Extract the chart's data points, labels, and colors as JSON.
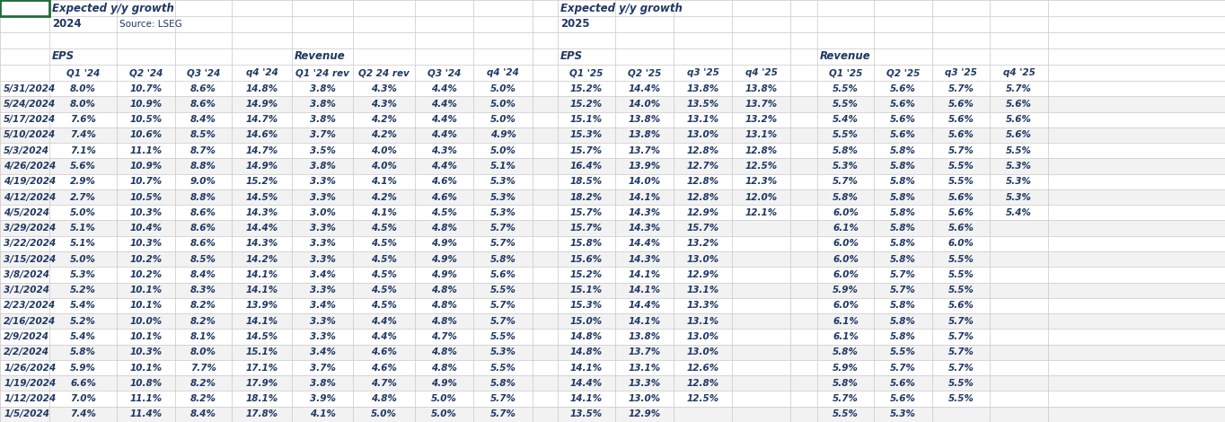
{
  "rows": [
    [
      "5/31/2024",
      "8.0%",
      "10.7%",
      "8.6%",
      "14.8%",
      "3.8%",
      "4.3%",
      "4.4%",
      "5.0%",
      "15.2%",
      "14.4%",
      "13.8%",
      "13.8%",
      "5.5%",
      "5.6%",
      "5.7%",
      "5.7%"
    ],
    [
      "5/24/2024",
      "8.0%",
      "10.9%",
      "8.6%",
      "14.9%",
      "3.8%",
      "4.3%",
      "4.4%",
      "5.0%",
      "15.2%",
      "14.0%",
      "13.5%",
      "13.7%",
      "5.5%",
      "5.6%",
      "5.6%",
      "5.6%"
    ],
    [
      "5/17/2024",
      "7.6%",
      "10.5%",
      "8.4%",
      "14.7%",
      "3.8%",
      "4.2%",
      "4.4%",
      "5.0%",
      "15.1%",
      "13.8%",
      "13.1%",
      "13.2%",
      "5.4%",
      "5.6%",
      "5.6%",
      "5.6%"
    ],
    [
      "5/10/2024",
      "7.4%",
      "10.6%",
      "8.5%",
      "14.6%",
      "3.7%",
      "4.2%",
      "4.4%",
      "4.9%",
      "15.3%",
      "13.8%",
      "13.0%",
      "13.1%",
      "5.5%",
      "5.6%",
      "5.6%",
      "5.6%"
    ],
    [
      "5/3/2024",
      "7.1%",
      "11.1%",
      "8.7%",
      "14.7%",
      "3.5%",
      "4.0%",
      "4.3%",
      "5.0%",
      "15.7%",
      "13.7%",
      "12.8%",
      "12.8%",
      "5.8%",
      "5.8%",
      "5.7%",
      "5.5%"
    ],
    [
      "4/26/2024",
      "5.6%",
      "10.9%",
      "8.8%",
      "14.9%",
      "3.8%",
      "4.0%",
      "4.4%",
      "5.1%",
      "16.4%",
      "13.9%",
      "12.7%",
      "12.5%",
      "5.3%",
      "5.8%",
      "5.5%",
      "5.3%"
    ],
    [
      "4/19/2024",
      "2.9%",
      "10.7%",
      "9.0%",
      "15.2%",
      "3.3%",
      "4.1%",
      "4.6%",
      "5.3%",
      "18.5%",
      "14.0%",
      "12.8%",
      "12.3%",
      "5.7%",
      "5.8%",
      "5.5%",
      "5.3%"
    ],
    [
      "4/12/2024",
      "2.7%",
      "10.5%",
      "8.8%",
      "14.5%",
      "3.3%",
      "4.2%",
      "4.6%",
      "5.3%",
      "18.2%",
      "14.1%",
      "12.8%",
      "12.0%",
      "5.8%",
      "5.8%",
      "5.6%",
      "5.3%"
    ],
    [
      "4/5/2024",
      "5.0%",
      "10.3%",
      "8.6%",
      "14.3%",
      "3.0%",
      "4.1%",
      "4.5%",
      "5.3%",
      "15.7%",
      "14.3%",
      "12.9%",
      "12.1%",
      "6.0%",
      "5.8%",
      "5.6%",
      "5.4%"
    ],
    [
      "3/29/2024",
      "5.1%",
      "10.4%",
      "8.6%",
      "14.4%",
      "3.3%",
      "4.5%",
      "4.8%",
      "5.7%",
      "15.7%",
      "14.3%",
      "15.7%",
      "",
      "6.1%",
      "5.8%",
      "5.6%",
      ""
    ],
    [
      "3/22/2024",
      "5.1%",
      "10.3%",
      "8.6%",
      "14.3%",
      "3.3%",
      "4.5%",
      "4.9%",
      "5.7%",
      "15.8%",
      "14.4%",
      "13.2%",
      "",
      "6.0%",
      "5.8%",
      "6.0%",
      ""
    ],
    [
      "3/15/2024",
      "5.0%",
      "10.2%",
      "8.5%",
      "14.2%",
      "3.3%",
      "4.5%",
      "4.9%",
      "5.8%",
      "15.6%",
      "14.3%",
      "13.0%",
      "",
      "6.0%",
      "5.8%",
      "5.5%",
      ""
    ],
    [
      "3/8/2024",
      "5.3%",
      "10.2%",
      "8.4%",
      "14.1%",
      "3.4%",
      "4.5%",
      "4.9%",
      "5.6%",
      "15.2%",
      "14.1%",
      "12.9%",
      "",
      "6.0%",
      "5.7%",
      "5.5%",
      ""
    ],
    [
      "3/1/2024",
      "5.2%",
      "10.1%",
      "8.3%",
      "14.1%",
      "3.3%",
      "4.5%",
      "4.8%",
      "5.5%",
      "15.1%",
      "14.1%",
      "13.1%",
      "",
      "5.9%",
      "5.7%",
      "5.5%",
      ""
    ],
    [
      "2/23/2024",
      "5.4%",
      "10.1%",
      "8.2%",
      "13.9%",
      "3.4%",
      "4.5%",
      "4.8%",
      "5.7%",
      "15.3%",
      "14.4%",
      "13.3%",
      "",
      "6.0%",
      "5.8%",
      "5.6%",
      ""
    ],
    [
      "2/16/2024",
      "5.2%",
      "10.0%",
      "8.2%",
      "14.1%",
      "3.3%",
      "4.4%",
      "4.8%",
      "5.7%",
      "15.0%",
      "14.1%",
      "13.1%",
      "",
      "6.1%",
      "5.8%",
      "5.7%",
      ""
    ],
    [
      "2/9/2024",
      "5.4%",
      "10.1%",
      "8.1%",
      "14.5%",
      "3.3%",
      "4.4%",
      "4.7%",
      "5.5%",
      "14.8%",
      "13.8%",
      "13.0%",
      "",
      "6.1%",
      "5.8%",
      "5.7%",
      ""
    ],
    [
      "2/2/2024",
      "5.8%",
      "10.3%",
      "8.0%",
      "15.1%",
      "3.4%",
      "4.6%",
      "4.8%",
      "5.3%",
      "14.8%",
      "13.7%",
      "13.0%",
      "",
      "5.8%",
      "5.5%",
      "5.7%",
      ""
    ],
    [
      "1/26/2024",
      "5.9%",
      "10.1%",
      "7.7%",
      "17.1%",
      "3.7%",
      "4.6%",
      "4.8%",
      "5.5%",
      "14.1%",
      "13.1%",
      "12.6%",
      "",
      "5.9%",
      "5.7%",
      "5.7%",
      ""
    ],
    [
      "1/19/2024",
      "6.6%",
      "10.8%",
      "8.2%",
      "17.9%",
      "3.8%",
      "4.7%",
      "4.9%",
      "5.8%",
      "14.4%",
      "13.3%",
      "12.8%",
      "",
      "5.8%",
      "5.6%",
      "5.5%",
      ""
    ],
    [
      "1/12/2024",
      "7.0%",
      "11.1%",
      "8.2%",
      "18.1%",
      "3.9%",
      "4.8%",
      "5.0%",
      "5.7%",
      "14.1%",
      "13.0%",
      "12.5%",
      "",
      "5.7%",
      "5.6%",
      "5.5%",
      ""
    ],
    [
      "1/5/2024",
      "7.4%",
      "11.4%",
      "8.4%",
      "17.8%",
      "4.1%",
      "5.0%",
      "5.0%",
      "5.7%",
      "13.5%",
      "12.9%",
      "",
      "",
      "5.5%",
      "5.3%",
      "",
      ""
    ]
  ],
  "text_color": "#1F3864",
  "grid_color": "#C8C8C8",
  "bg_even": "#FFFFFF",
  "bg_odd": "#F2F2F2",
  "green_border": "#1F6B3B",
  "figsize": [
    13.64,
    4.7
  ],
  "dpi": 100
}
